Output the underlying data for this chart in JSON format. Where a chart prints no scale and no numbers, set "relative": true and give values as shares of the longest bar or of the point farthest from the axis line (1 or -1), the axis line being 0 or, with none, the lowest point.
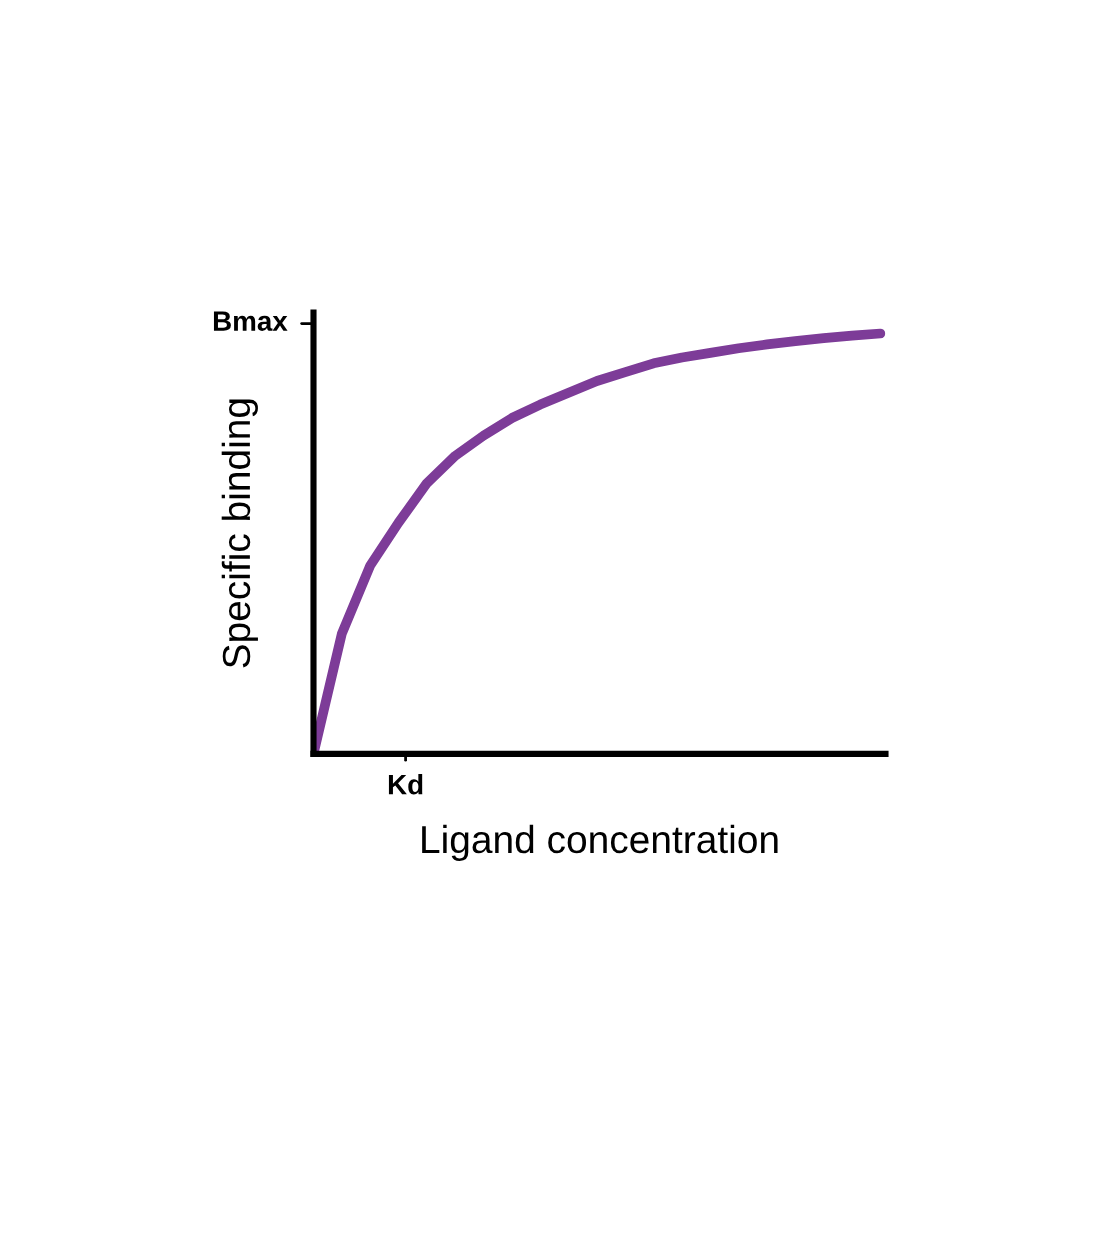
{
  "chart_data": {
    "type": "line",
    "relative": true,
    "xlabel": "Ligand concentration",
    "ylabel": "Specific binding",
    "categories": [
      null,
      null,
      null,
      null,
      null,
      null,
      null,
      null,
      null,
      null,
      null,
      null,
      null,
      null,
      null,
      null,
      null,
      null,
      null,
      null,
      null
    ],
    "series": [
      {
        "color": "#7d3c98",
        "values": [
          0,
          0.286,
          0.448,
          0.55,
          0.644,
          0.709,
          0.757,
          0.799,
          0.831,
          0.859,
          0.887,
          0.908,
          0.929,
          0.943,
          0.954,
          0.965,
          0.974,
          0.982,
          0.989,
          0.995,
          1.0
        ]
      }
    ],
    "annotations": [
      "Kd",
      "Bmax"
    ],
    "grid": false,
    "legend": false,
    "marker": "none",
    "line_style": "solid"
  }
}
